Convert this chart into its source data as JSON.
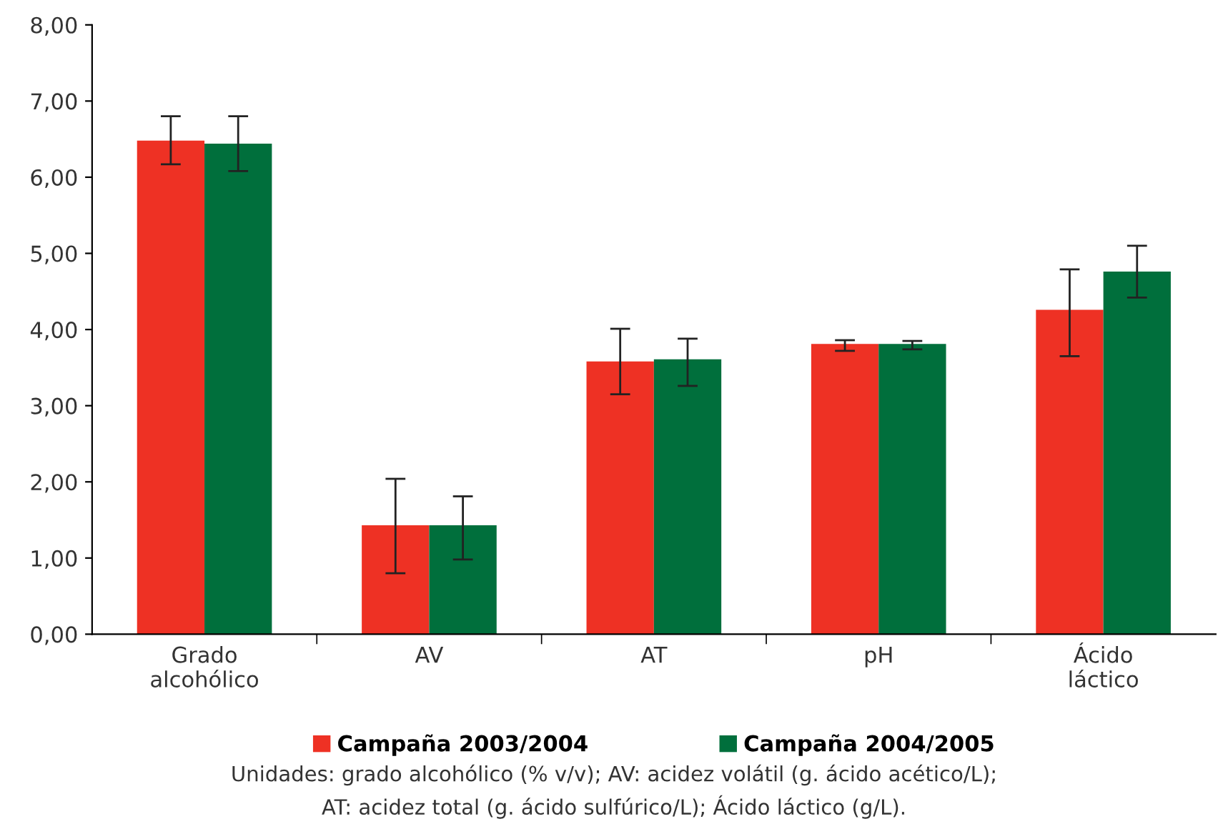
{
  "chart_data": {
    "type": "bar",
    "categories": [
      "Grado\nalcohólico",
      "AV",
      "AT",
      "pH",
      "Ácido\nláctico"
    ],
    "series": [
      {
        "name": "Campaña 2003/2004",
        "color": "#ee3124",
        "values": [
          6.48,
          1.43,
          3.58,
          3.81,
          4.26
        ],
        "errors": [
          [
            6.17,
            6.8
          ],
          [
            0.8,
            2.04
          ],
          [
            3.15,
            4.01
          ],
          [
            3.72,
            3.86
          ],
          [
            3.65,
            4.79
          ]
        ]
      },
      {
        "name": "Campaña 2004/2005",
        "color": "#006f3c",
        "values": [
          6.44,
          1.43,
          3.61,
          3.81,
          4.76
        ],
        "errors": [
          [
            6.08,
            6.8
          ],
          [
            0.98,
            1.81
          ],
          [
            3.26,
            3.88
          ],
          [
            3.74,
            3.85
          ],
          [
            4.42,
            5.1
          ]
        ]
      }
    ],
    "ylim": [
      0,
      8
    ],
    "yticks": [
      {
        "value": 0,
        "label": "0,00"
      },
      {
        "value": 1,
        "label": "1,00"
      },
      {
        "value": 2,
        "label": "2,00"
      },
      {
        "value": 3,
        "label": "3,00"
      },
      {
        "value": 4,
        "label": "4,00"
      },
      {
        "value": 5,
        "label": "5,00"
      },
      {
        "value": 6,
        "label": "6,00"
      },
      {
        "value": 7,
        "label": "7,00"
      },
      {
        "value": 8,
        "label": "8,00"
      }
    ],
    "grid": false,
    "legend": "bottom",
    "annotations": [
      "Unidades: grado alcohólico (% v/v); AV: acidez volátil (g. ácido acético/L);\nAT: acidez total (g. ácido sulfúrico/L); Ácido láctico (g/L)."
    ]
  }
}
